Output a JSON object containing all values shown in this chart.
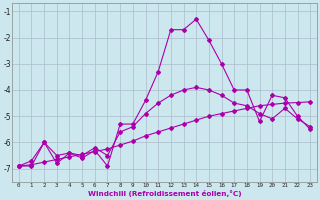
{
  "title": "",
  "xlabel": "Windchill (Refroidissement éolien,°C)",
  "background_color": "#cce8ee",
  "grid_color": "#aabbcc",
  "line_color": "#aa00aa",
  "xlim": [
    -0.5,
    23.5
  ],
  "ylim": [
    -7.5,
    -0.7
  ],
  "yticks": [
    -7,
    -6,
    -5,
    -4,
    -3,
    -2,
    -1
  ],
  "xticks": [
    0,
    1,
    2,
    3,
    4,
    5,
    6,
    7,
    8,
    9,
    10,
    11,
    12,
    13,
    14,
    15,
    16,
    17,
    18,
    19,
    20,
    21,
    22,
    23
  ],
  "line1_x": [
    0,
    1,
    2,
    3,
    4,
    5,
    6,
    7,
    8,
    9,
    10,
    11,
    12,
    13,
    14,
    15,
    16,
    17,
    18,
    19,
    20,
    21,
    22,
    23
  ],
  "line1_y": [
    -6.9,
    -6.9,
    -6.0,
    -6.8,
    -6.4,
    -6.6,
    -6.3,
    -6.9,
    -5.3,
    -5.3,
    -4.4,
    -3.3,
    -1.7,
    -1.7,
    -1.3,
    -2.1,
    -3.0,
    -4.0,
    -4.0,
    -5.2,
    -4.2,
    -4.3,
    -5.0,
    -5.5
  ],
  "line2_x": [
    0,
    1,
    2,
    3,
    4,
    5,
    6,
    7,
    8,
    9,
    10,
    11,
    12,
    13,
    14,
    15,
    16,
    17,
    18,
    19,
    20,
    21,
    22,
    23
  ],
  "line2_y": [
    -6.9,
    -6.7,
    -6.0,
    -6.5,
    -6.4,
    -6.5,
    -6.2,
    -6.5,
    -5.6,
    -5.4,
    -4.9,
    -4.5,
    -4.2,
    -4.0,
    -3.9,
    -4.0,
    -4.2,
    -4.5,
    -4.6,
    -4.9,
    -5.1,
    -4.7,
    -5.1,
    -5.4
  ],
  "line3_x": [
    0,
    1,
    2,
    3,
    4,
    5,
    6,
    7,
    8,
    9,
    10,
    11,
    12,
    13,
    14,
    15,
    16,
    17,
    18,
    19,
    20,
    21,
    22,
    23
  ],
  "line3_y": [
    -6.9,
    -6.85,
    -6.75,
    -6.65,
    -6.55,
    -6.45,
    -6.35,
    -6.25,
    -6.1,
    -5.95,
    -5.75,
    -5.6,
    -5.45,
    -5.3,
    -5.15,
    -5.0,
    -4.9,
    -4.8,
    -4.7,
    -4.6,
    -4.55,
    -4.5,
    -4.48,
    -4.45
  ]
}
